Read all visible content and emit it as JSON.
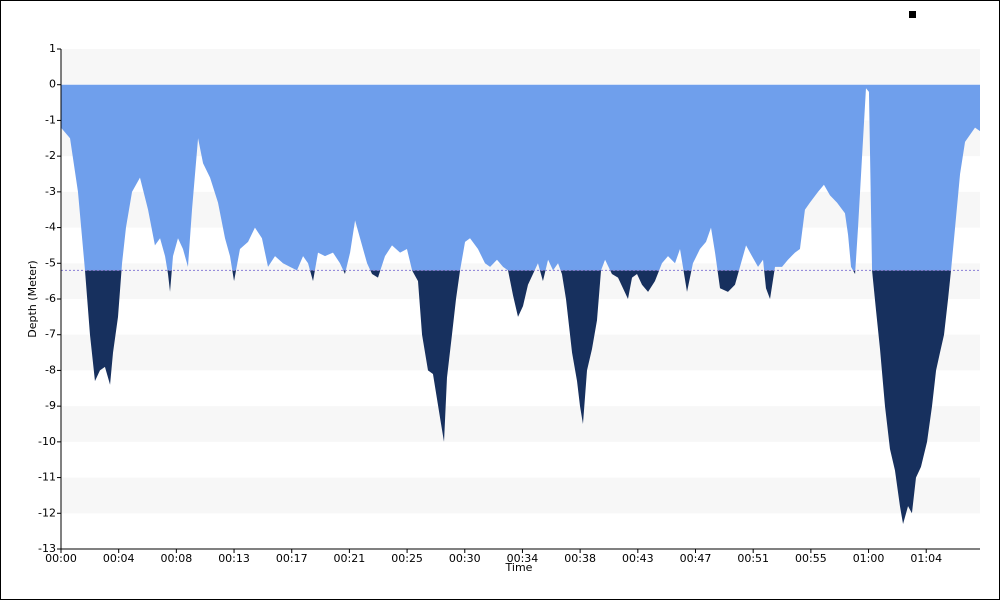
{
  "chart_data": {
    "type": "area",
    "x_label": "Time",
    "y_label": "Depth (Meter)",
    "x": [
      0,
      0.67,
      1.26,
      1.78,
      2.15,
      2.52,
      2.89,
      3.26,
      3.64,
      3.86,
      4.23,
      4.53,
      4.82,
      5.27,
      5.86,
      6.46,
      6.97,
      7.35,
      7.72,
      7.94,
      8.09,
      8.31,
      8.68,
      9.05,
      9.42,
      9.72,
      10.17,
      10.54,
      11.06,
      11.65,
      12.17,
      12.54,
      12.84,
      13.28,
      13.88,
      14.39,
      14.91,
      15.36,
      15.88,
      16.47,
      16.99,
      17.51,
      17.96,
      18.33,
      18.7,
      19.07,
      19.59,
      20.18,
      20.7,
      21.07,
      21.45,
      21.82,
      22.19,
      22.71,
      23.08,
      23.52,
      24.04,
      24.56,
      25.16,
      25.67,
      26.05,
      26.49,
      26.79,
      27.23,
      27.6,
      27.9,
      28.2,
      28.42,
      28.64,
      29.01,
      29.31,
      29.61,
      29.98,
      30.35,
      30.94,
      31.46,
      31.84,
      32.35,
      32.8,
      33.17,
      33.54,
      33.91,
      34.28,
      34.65,
      35.02,
      35.39,
      35.76,
      36.14,
      36.51,
      36.88,
      37.17,
      37.47,
      37.92,
      38.29,
      38.51,
      38.73,
      39.03,
      39.4,
      39.77,
      40.07,
      40.37,
      40.88,
      41.33,
      41.7,
      42.07,
      42.37,
      42.74,
      43.11,
      43.56,
      44.07,
      44.59,
      45.04,
      45.56,
      45.93,
      46.45,
      46.89,
      47.41,
      47.86,
      48.23,
      48.53,
      48.9,
      49.49,
      50.01,
      50.38,
      50.83,
      51.27,
      51.72,
      52.09,
      52.31,
      52.61,
      52.98,
      53.5,
      53.94,
      54.46,
      54.83,
      55.2,
      55.57,
      56.17,
      56.61,
      57.06,
      57.58,
      58.17,
      58.4,
      58.62,
      58.92,
      59.14,
      59.44,
      59.73,
      59.95,
      60.18,
      60.47,
      60.77,
      61.14,
      61.51,
      61.88,
      62.25,
      62.48,
      62.85,
      63.14,
      63.44,
      63.81,
      64.26,
      64.63,
      64.93,
      65.22,
      65.52,
      65.82,
      66.04,
      66.34,
      66.71,
      67.08,
      67.45,
      67.82,
      68.19
    ],
    "series": [
      {
        "color": "#6f9fec",
        "below_color": "#17305e",
        "values": [
          -1.2,
          -1.5,
          -3,
          -5.2,
          -7,
          -8.3,
          -8,
          -7.9,
          -8.4,
          -7.5,
          -6.5,
          -5.0,
          -4,
          -3,
          -2.6,
          -3.5,
          -4.5,
          -4.3,
          -4.8,
          -5.3,
          -5.8,
          -4.8,
          -4.3,
          -4.6,
          -5.1,
          -3.5,
          -1.5,
          -2.2,
          -2.6,
          -3.3,
          -4.3,
          -4.8,
          -5.5,
          -4.6,
          -4.4,
          -4.0,
          -4.3,
          -5.1,
          -4.8,
          -5.0,
          -5.1,
          -5.2,
          -4.8,
          -5.0,
          -5.5,
          -4.7,
          -4.8,
          -4.7,
          -5.0,
          -5.3,
          -4.7,
          -3.8,
          -4.3,
          -5.0,
          -5.3,
          -5.4,
          -4.8,
          -4.5,
          -4.7,
          -4.6,
          -5.2,
          -5.5,
          -7,
          -8.0,
          -8.1,
          -8.8,
          -9.5,
          -10,
          -8.2,
          -7,
          -6,
          -5.2,
          -4.4,
          -4.3,
          -4.6,
          -5.0,
          -5.1,
          -4.9,
          -5.1,
          -5.2,
          -5.9,
          -6.5,
          -6.2,
          -5.6,
          -5.3,
          -5.0,
          -5.5,
          -4.9,
          -5.2,
          -5.0,
          -5.3,
          -6,
          -7.5,
          -8.3,
          -9,
          -9.5,
          -8.0,
          -7.4,
          -6.6,
          -5.2,
          -4.9,
          -5.3,
          -5.4,
          -5.7,
          -6.0,
          -5.4,
          -5.3,
          -5.6,
          -5.8,
          -5.5,
          -5.0,
          -4.8,
          -5.0,
          -4.6,
          -5.8,
          -5.0,
          -4.6,
          -4.4,
          -4.0,
          -4.7,
          -5.7,
          -5.8,
          -5.6,
          -5.1,
          -4.5,
          -4.8,
          -5.1,
          -4.9,
          -5.7,
          -6.0,
          -5.1,
          -5.1,
          -4.9,
          -4.7,
          -4.6,
          -3.5,
          -3.3,
          -3.0,
          -2.8,
          -3.1,
          -3.3,
          -3.6,
          -4.2,
          -5.1,
          -5.3,
          -4.0,
          -2.0,
          -0.1,
          -0.2,
          -5.2,
          -6.3,
          -7.4,
          -9,
          -10.2,
          -10.8,
          -11.8,
          -12.3,
          -11.8,
          -12.0,
          -11.0,
          -10.7,
          -10,
          -9,
          -8,
          -7.5,
          -7.0,
          -6.0,
          -5.2,
          -4.0,
          -2.5,
          -1.6,
          -1.4,
          -1.2,
          -1.3
        ]
      }
    ],
    "threshold": -5.2,
    "threshold_color": "#8a7fd6",
    "xlim": [
      0,
      68.19
    ],
    "xticks": [
      {
        "value": 0,
        "label": "00:00"
      },
      {
        "value": 4.28,
        "label": "00:04"
      },
      {
        "value": 8.56,
        "label": "00:08"
      },
      {
        "value": 12.84,
        "label": "00:13"
      },
      {
        "value": 17.12,
        "label": "00:17"
      },
      {
        "value": 21.4,
        "label": "00:21"
      },
      {
        "value": 25.68,
        "label": "00:25"
      },
      {
        "value": 29.96,
        "label": "00:30"
      },
      {
        "value": 34.24,
        "label": "00:34"
      },
      {
        "value": 38.52,
        "label": "00:38"
      },
      {
        "value": 42.8,
        "label": "00:43"
      },
      {
        "value": 47.08,
        "label": "00:47"
      },
      {
        "value": 51.36,
        "label": "00:51"
      },
      {
        "value": 55.64,
        "label": "00:55"
      },
      {
        "value": 59.92,
        "label": "01:00"
      },
      {
        "value": 64.2,
        "label": "01:04"
      }
    ],
    "ylim": [
      -13,
      1
    ],
    "yticks": [
      1,
      0,
      -1,
      -2,
      -3,
      -4,
      -5,
      -6,
      -7,
      -8,
      -9,
      -10,
      -11,
      -12,
      -13
    ],
    "grid": "bands"
  }
}
